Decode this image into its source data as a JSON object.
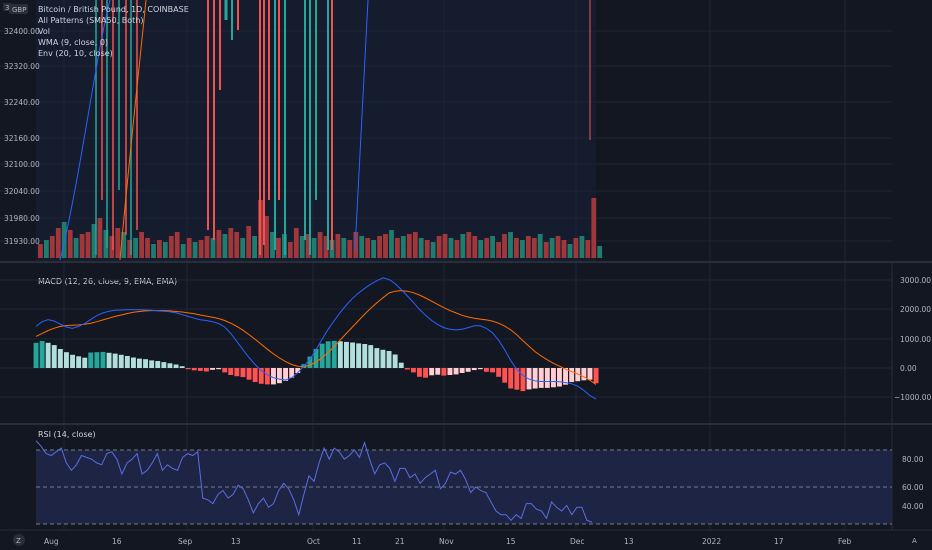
{
  "legend": {
    "title": "Bitcoin / British Pound, 1D, COINBASE",
    "indicators": [
      "All Patterns (SMA50, Both)",
      "Vol",
      "WMA (9, close, 0)",
      "Env (20, 10, close)"
    ]
  },
  "currency_badge": "GBP",
  "price_axis": [
    "32400.00",
    "32320.00",
    "32240.00",
    "32160.00",
    "32100.00",
    "32040.00",
    "31980.00",
    "31930.00"
  ],
  "price_axis_top": "3",
  "macd": {
    "label": "MACD (12, 26, close, 9, EMA, EMA)",
    "axis": [
      "3000.00",
      "2000.00",
      "1000.00",
      "0.00",
      "−1000.00"
    ],
    "macd_line": [
      1420,
      1580,
      1650,
      1600,
      1500,
      1400,
      1350,
      1420,
      1520,
      1660,
      1790,
      1880,
      1940,
      1970,
      1980,
      1990,
      1990,
      1990,
      1980,
      1970,
      1950,
      1940,
      1920,
      1880,
      1820,
      1760,
      1700,
      1650,
      1620,
      1580,
      1520,
      1400,
      1180,
      900,
      620,
      360,
      120,
      -90,
      -230,
      -330,
      -380,
      -410,
      -330,
      -160,
      60,
      300,
      620,
      980,
      1320,
      1620,
      1900,
      2150,
      2380,
      2560,
      2720,
      2860,
      2980,
      3080,
      3020,
      2880,
      2680,
      2460,
      2240,
      2000,
      1800,
      1620,
      1480,
      1380,
      1320,
      1300,
      1320,
      1380,
      1440,
      1440,
      1350,
      1200,
      950,
      620,
      250,
      -50,
      -260,
      -380,
      -440,
      -460,
      -460,
      -460,
      -470,
      -500,
      -540,
      -620,
      -760,
      -940,
      -1060
    ],
    "signal_line": [
      1080,
      1180,
      1280,
      1360,
      1420,
      1450,
      1460,
      1470,
      1490,
      1530,
      1580,
      1640,
      1700,
      1760,
      1810,
      1860,
      1900,
      1930,
      1950,
      1960,
      1960,
      1960,
      1950,
      1930,
      1910,
      1880,
      1850,
      1810,
      1770,
      1730,
      1690,
      1620,
      1530,
      1420,
      1290,
      1140,
      980,
      810,
      640,
      480,
      340,
      220,
      120,
      60,
      50,
      100,
      200,
      350,
      530,
      740,
      960,
      1180,
      1400,
      1620,
      1840,
      2040,
      2230,
      2400,
      2560,
      2620,
      2640,
      2620,
      2570,
      2490,
      2390,
      2280,
      2170,
      2060,
      1960,
      1880,
      1800,
      1740,
      1700,
      1670,
      1640,
      1600,
      1530,
      1430,
      1300,
      1130,
      930,
      740,
      560,
      410,
      280,
      160,
      60,
      -40,
      -120,
      -200,
      -300,
      -420,
      -560
    ],
    "histogram": [
      860,
      920,
      860,
      780,
      650,
      540,
      450,
      400,
      350,
      530,
      540,
      550,
      520,
      490,
      450,
      410,
      360,
      320,
      300,
      260,
      240,
      200,
      160,
      120,
      60,
      -40,
      -80,
      -100,
      -120,
      -60,
      -40,
      -150,
      -240,
      -280,
      -310,
      -400,
      -480,
      -540,
      -560,
      -560,
      -520,
      -440,
      -330,
      -170,
      130,
      390,
      650,
      830,
      910,
      930,
      910,
      890,
      870,
      840,
      820,
      780,
      680,
      620,
      580,
      460,
      180,
      -50,
      -150,
      -300,
      -330,
      -250,
      -230,
      -260,
      -240,
      -220,
      -170,
      -130,
      -70,
      -40,
      -130,
      -150,
      -300,
      -500,
      -700,
      -740,
      -790,
      -730,
      -700,
      -680,
      -680,
      -660,
      -630,
      -570,
      -480,
      -450,
      -420,
      -400,
      -520
    ]
  },
  "rsi": {
    "label": "RSI (14, close)",
    "axis": [
      "80.00",
      "60.00",
      "40.00"
    ],
    "values": [
      78,
      75,
      71,
      70,
      72,
      74,
      66,
      62,
      65,
      70,
      69,
      68,
      66,
      65,
      71,
      72,
      68,
      60,
      66,
      68,
      71,
      60,
      62,
      66,
      71,
      62,
      65,
      63,
      62,
      69,
      71,
      70,
      72,
      47,
      46,
      44,
      49,
      51,
      47,
      49,
      54,
      52,
      46,
      39,
      44,
      47,
      42,
      44,
      51,
      55,
      52,
      46,
      38,
      49,
      59,
      56,
      66,
      74,
      68,
      74,
      72,
      68,
      70,
      73,
      69,
      77,
      68,
      60,
      65,
      66,
      63,
      56,
      63,
      63,
      58,
      60,
      55,
      58,
      60,
      62,
      52,
      55,
      61,
      60,
      62,
      57,
      50,
      53,
      51,
      50,
      45,
      40,
      38,
      38,
      35,
      38,
      36,
      44,
      44,
      41,
      40,
      36,
      45,
      42,
      40,
      43,
      38,
      42,
      42,
      35,
      34
    ]
  },
  "rsi_bands": {
    "upper": 70,
    "middle": 50,
    "lower": 30
  },
  "date_axis": [
    "Aug",
    "16",
    "Sep",
    "13",
    "Oct",
    "11",
    "21",
    "Nov",
    "15",
    "Dec",
    "13",
    "2022",
    "17",
    "Feb"
  ],
  "corner_left": "Z",
  "corner_right": "A"
}
